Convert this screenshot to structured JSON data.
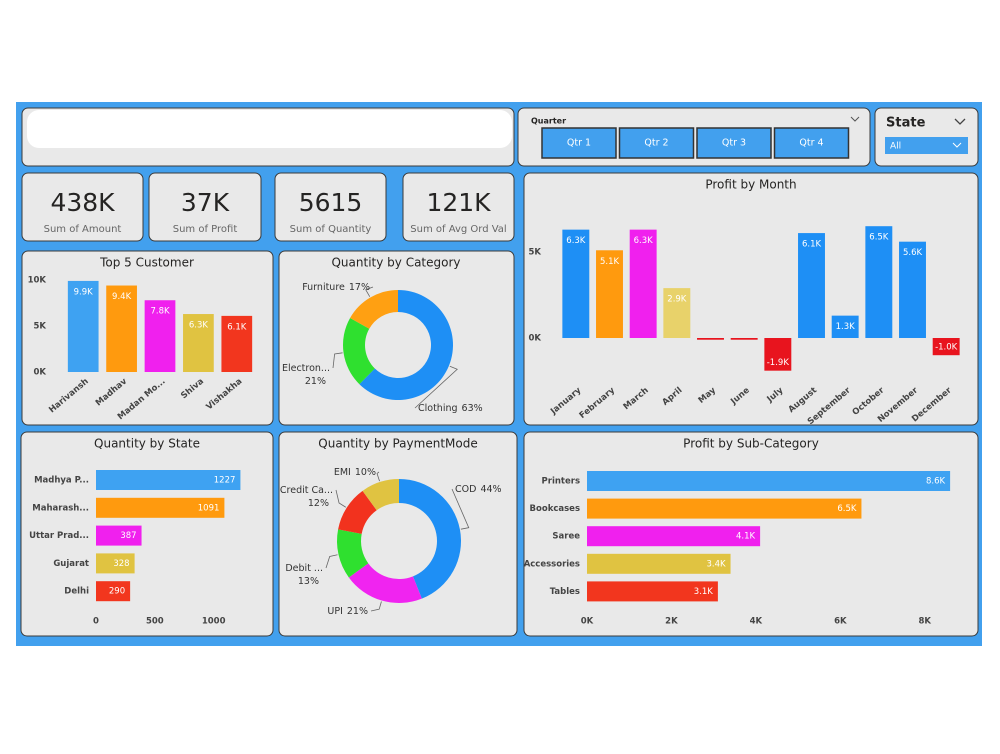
{
  "kpis": [
    {
      "value": "438K",
      "label": "Sum of Amount"
    },
    {
      "value": "37K",
      "label": "Sum of Profit"
    },
    {
      "value": "5615",
      "label": "Sum of Quantity"
    },
    {
      "value": "121K",
      "label": "Sum of Avg Ord Val"
    }
  ],
  "slicers": {
    "quarter": {
      "label": "Quarter",
      "options": [
        "Qtr 1",
        "Qtr 2",
        "Qtr 3",
        "Qtr 4"
      ]
    },
    "state": {
      "label": "State",
      "selected": "All"
    }
  },
  "chart_data": [
    {
      "type": "column",
      "title": "Top 5 Customer",
      "categories": [
        "Harivansh",
        "Madhav",
        "Madan Mo...",
        "Shiva",
        "Vishakha"
      ],
      "values": [
        9900,
        9400,
        7800,
        6300,
        6100
      ],
      "value_labels": [
        "9.9K",
        "9.4K",
        "7.8K",
        "6.3K",
        "6.1K"
      ],
      "colors": [
        "#3ea2f2",
        "#ff9a0e",
        "#f020ee",
        "#e0c341",
        "#f2361e"
      ],
      "ylim": [
        0,
        10000
      ],
      "yticks": [
        {
          "value": 0,
          "label": "0K"
        },
        {
          "value": 5000,
          "label": "5K"
        },
        {
          "value": 10000,
          "label": "10K"
        }
      ]
    },
    {
      "type": "donut",
      "title": "Quantity by Category",
      "categories": [
        "Clothing",
        "Electron...",
        "Furniture"
      ],
      "values": [
        63,
        21,
        17
      ],
      "value_labels": [
        "63%",
        "21%",
        "17%"
      ],
      "colors": [
        "#1e8ff5",
        "#2fe02f",
        "#ffa012"
      ]
    },
    {
      "type": "column",
      "title": "Profit by Month",
      "categories": [
        "January",
        "February",
        "March",
        "April",
        "May",
        "June",
        "July",
        "August",
        "September",
        "October",
        "November",
        "December"
      ],
      "values": [
        6300,
        5100,
        6300,
        2900,
        -100,
        -100,
        -1900,
        6100,
        1300,
        6500,
        5600,
        -1000
      ],
      "value_labels": [
        "6.3K",
        "5.1K",
        "6.3K",
        "2.9K",
        null,
        null,
        "-1.9K",
        "6.1K",
        "1.3K",
        "6.5K",
        "5.6K",
        "-1.0K"
      ],
      "colors": [
        "#1e8ff5",
        "#ff9a0e",
        "#f020ee",
        "#e8d26a",
        "#e8141e",
        "#e8141e",
        "#e8141e",
        "#1e8ff5",
        "#1e8ff5",
        "#1e8ff5",
        "#1e8ff5",
        "#e8141e"
      ],
      "ylim": [
        -2500,
        7500
      ],
      "yticks": [
        {
          "value": 0,
          "label": "0K"
        },
        {
          "value": 5000,
          "label": "5K"
        }
      ]
    },
    {
      "type": "hbar",
      "title": "Quantity by State",
      "categories": [
        "Madhya P...",
        "Maharash...",
        "Uttar Prad...",
        "Gujarat",
        "Delhi"
      ],
      "values": [
        1227,
        1091,
        387,
        328,
        290
      ],
      "colors": [
        "#3ea2f2",
        "#ff9a0e",
        "#f020ee",
        "#e0c341",
        "#f2361e"
      ],
      "xlim": [
        0,
        1300
      ],
      "xticks": [
        0,
        500,
        1000
      ]
    },
    {
      "type": "donut",
      "title": "Quantity by PaymentMode",
      "categories": [
        "COD",
        "UPI",
        "Debit ...",
        "Credit Ca...",
        "EMI"
      ],
      "values": [
        44,
        21,
        13,
        12,
        10
      ],
      "value_labels": [
        "44%",
        "21%",
        "13%",
        "12%",
        "10%"
      ],
      "colors": [
        "#1e8ff5",
        "#f024f0",
        "#2fe02f",
        "#f2321e",
        "#e0c341"
      ]
    },
    {
      "type": "hbar",
      "title": "Profit by Sub-Category",
      "categories": [
        "Printers",
        "Bookcases",
        "Saree",
        "Accessories",
        "Tables"
      ],
      "values": [
        8600,
        6500,
        4100,
        3400,
        3100
      ],
      "value_labels": [
        "8.6K",
        "6.5K",
        "4.1K",
        "3.4K",
        "3.1K"
      ],
      "colors": [
        "#3ea2f2",
        "#ff9a0e",
        "#f020ee",
        "#e0c341",
        "#f2361e"
      ],
      "xlim": [
        0,
        9000
      ],
      "xticks": [
        {
          "value": 0,
          "label": "0K"
        },
        {
          "value": 2000,
          "label": "2K"
        },
        {
          "value": 4000,
          "label": "4K"
        },
        {
          "value": 6000,
          "label": "6K"
        },
        {
          "value": 8000,
          "label": "8K"
        }
      ]
    }
  ]
}
